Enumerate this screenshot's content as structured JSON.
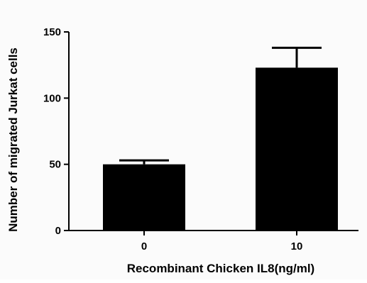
{
  "chart_data": {
    "type": "bar",
    "title": "",
    "xlabel": "Recombinant Chicken IL8(ng/ml)",
    "ylabel": "Number of migrated Jurkat cells",
    "categories": [
      "0",
      "10"
    ],
    "values": [
      50,
      123
    ],
    "error_upper": [
      53,
      138
    ],
    "ylim": [
      0,
      150
    ],
    "yticks": [
      0,
      50,
      100,
      150
    ],
    "grid": false,
    "legend": "none",
    "bar_color": "#000000"
  }
}
